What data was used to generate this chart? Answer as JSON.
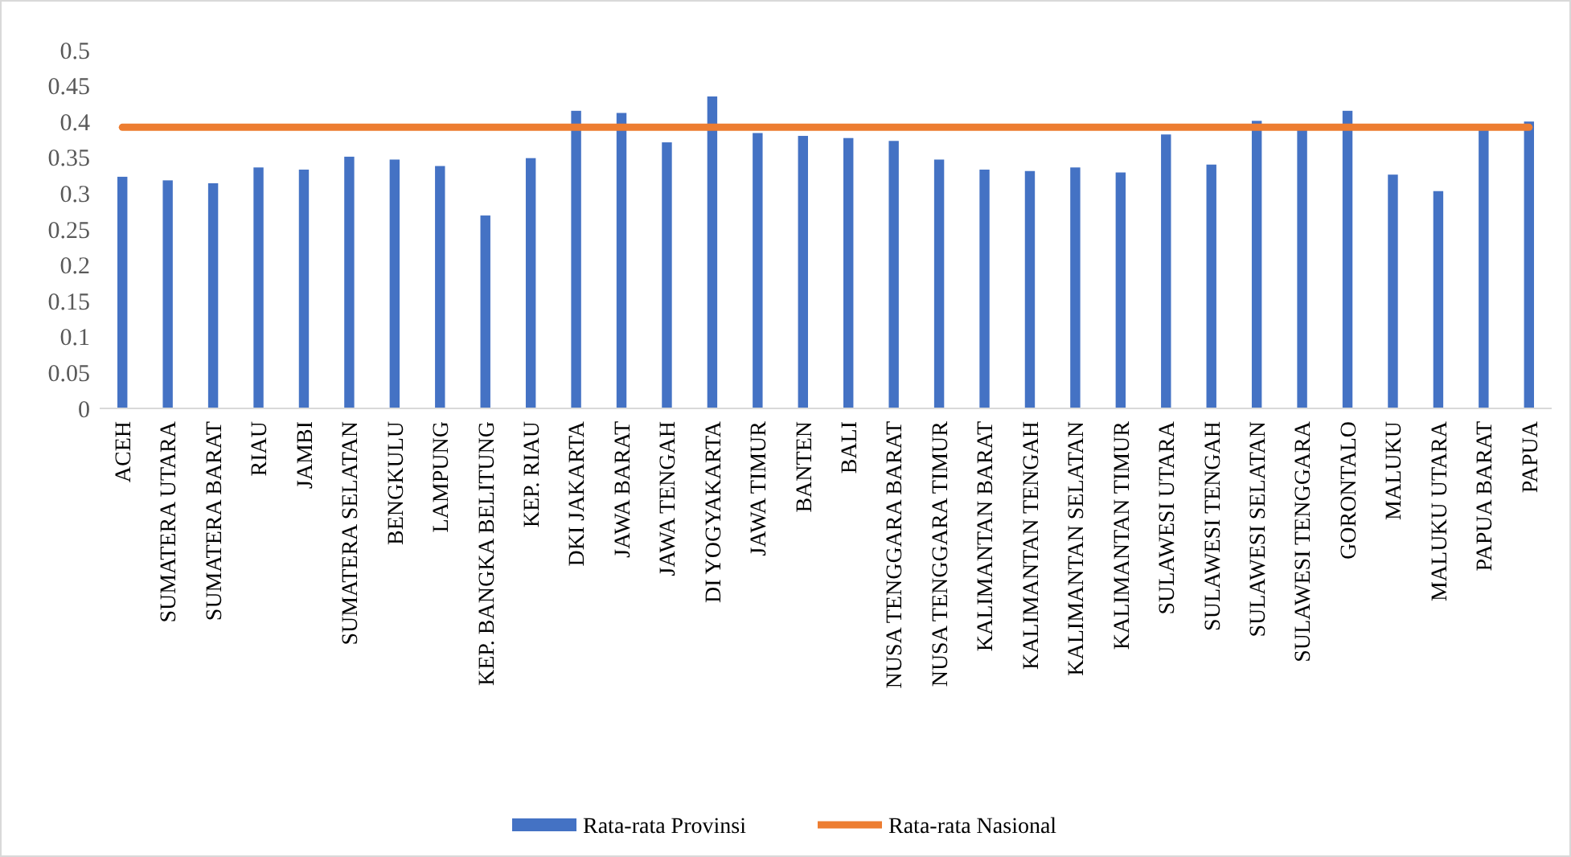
{
  "chart_data": {
    "type": "bar",
    "categories": [
      "ACEH",
      "SUMATERA UTARA",
      "SUMATERA BARAT",
      "RIAU",
      "JAMBI",
      "SUMATERA SELATAN",
      "BENGKULU",
      "LAMPUNG",
      "KEP. BANGKA BELITUNG",
      "KEP. RIAU",
      "DKI JAKARTA",
      "JAWA BARAT",
      "JAWA TENGAH",
      "DI YOGYAKARTA",
      "JAWA TIMUR",
      "BANTEN",
      "BALI",
      "NUSA TENGGARA BARAT",
      "NUSA TENGGARA TIMUR",
      "KALIMANTAN BARAT",
      "KALIMANTAN TENGAH",
      "KALIMANTAN SELATAN",
      "KALIMANTAN TIMUR",
      "SULAWESI UTARA",
      "SULAWESI TENGAH",
      "SULAWESI SELATAN",
      "SULAWESI TENGGARA",
      "GORONTALO",
      "MALUKU",
      "MALUKU UTARA",
      "PAPUA BARAT",
      "PAPUA"
    ],
    "series": [
      {
        "name": "Rata-rata Provinsi",
        "color": "#4472c4",
        "values": [
          0.323,
          0.318,
          0.314,
          0.336,
          0.333,
          0.351,
          0.347,
          0.338,
          0.269,
          0.349,
          0.415,
          0.412,
          0.371,
          0.435,
          0.384,
          0.38,
          0.377,
          0.373,
          0.347,
          0.333,
          0.331,
          0.336,
          0.329,
          0.382,
          0.34,
          0.401,
          0.39,
          0.415,
          0.326,
          0.303,
          0.39,
          0.4
        ]
      },
      {
        "name": "Rata-rata Nasional",
        "type": "line",
        "color": "#ed7d31",
        "values": [
          0.392,
          0.392,
          0.392,
          0.392,
          0.392,
          0.392,
          0.392,
          0.392,
          0.392,
          0.392,
          0.392,
          0.392,
          0.392,
          0.392,
          0.392,
          0.392,
          0.392,
          0.392,
          0.392,
          0.392,
          0.392,
          0.392,
          0.392,
          0.392,
          0.392,
          0.392,
          0.392,
          0.392,
          0.392,
          0.392,
          0.392,
          0.392
        ]
      }
    ],
    "ylim": [
      0,
      0.5
    ],
    "yticks": [
      0,
      0.05,
      0.1,
      0.15,
      0.2,
      0.25,
      0.3,
      0.35,
      0.4,
      0.45,
      0.5
    ],
    "grid": false,
    "legend": "bottom",
    "marker": "none"
  }
}
